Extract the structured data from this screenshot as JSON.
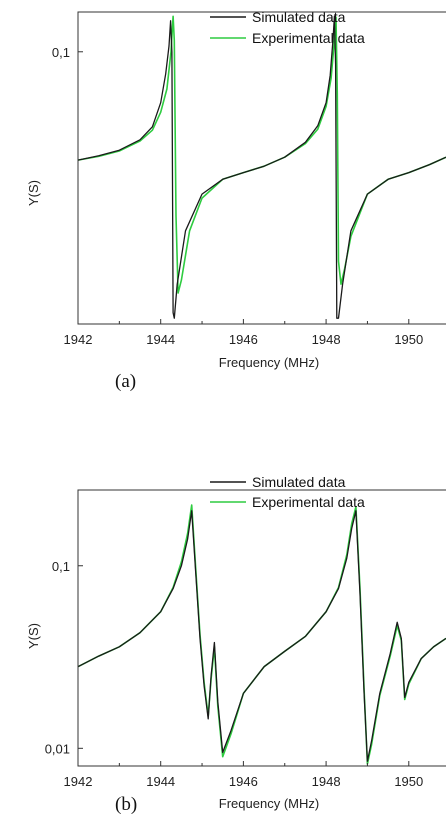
{
  "chart_data": [
    {
      "panel_label": "(a)",
      "type": "line",
      "xlabel": "Frequency (MHz)",
      "ylabel": "Y(S)",
      "xlim": [
        1942,
        1950.9
      ],
      "ylim": [
        0.01,
        0.14
      ],
      "yscale": "log",
      "x_ticks": [
        1942,
        1944,
        1946,
        1948,
        1950
      ],
      "x_tick_labels": [
        "1942",
        "1944",
        "1946",
        "1948",
        "1950"
      ],
      "y_ticks": [
        0.1
      ],
      "y_tick_labels": [
        "0,1"
      ],
      "legend": {
        "placement": "top-center",
        "entries": [
          "Simulated data",
          "Experimental data"
        ]
      },
      "series": [
        {
          "name": "Simulated data",
          "color": "#1a1a1a",
          "x": [
            1942,
            1942.5,
            1943,
            1943.5,
            1943.8,
            1944,
            1944.12,
            1944.2,
            1944.24,
            1944.27,
            1944.3,
            1944.33,
            1944.4,
            1944.6,
            1945,
            1945.5,
            1946,
            1946.5,
            1947,
            1947.5,
            1947.8,
            1948,
            1948.1,
            1948.17,
            1948.2,
            1948.23,
            1948.26,
            1948.3,
            1948.4,
            1948.6,
            1949,
            1949.5,
            1950,
            1950.5,
            1950.9
          ],
          "y": [
            0.04,
            0.0415,
            0.0435,
            0.0475,
            0.053,
            0.065,
            0.083,
            0.105,
            0.13,
            0.1,
            0.011,
            0.0105,
            0.014,
            0.022,
            0.03,
            0.034,
            0.036,
            0.038,
            0.041,
            0.0465,
            0.0535,
            0.065,
            0.082,
            0.112,
            0.135,
            0.09,
            0.0105,
            0.0105,
            0.014,
            0.022,
            0.03,
            0.034,
            0.036,
            0.0385,
            0.041
          ]
        },
        {
          "name": "Experimental data",
          "color": "#2ecc40",
          "x": [
            1942,
            1942.5,
            1943,
            1943.5,
            1943.8,
            1944,
            1944.15,
            1944.25,
            1944.3,
            1944.33,
            1944.37,
            1944.42,
            1944.5,
            1944.7,
            1945,
            1945.5,
            1946,
            1946.5,
            1947,
            1947.5,
            1947.8,
            1948,
            1948.12,
            1948.2,
            1948.24,
            1948.27,
            1948.3,
            1948.36,
            1948.45,
            1948.6,
            1949,
            1949.5,
            1950,
            1950.5,
            1950.9
          ],
          "y": [
            0.04,
            0.0413,
            0.0432,
            0.047,
            0.0515,
            0.06,
            0.073,
            0.1,
            0.135,
            0.11,
            0.025,
            0.013,
            0.0145,
            0.022,
            0.029,
            0.034,
            0.036,
            0.038,
            0.041,
            0.046,
            0.052,
            0.063,
            0.08,
            0.11,
            0.134,
            0.07,
            0.017,
            0.014,
            0.016,
            0.021,
            0.03,
            0.034,
            0.036,
            0.0385,
            0.041
          ]
        }
      ]
    },
    {
      "panel_label": "(b)",
      "type": "line",
      "xlabel": "Frequency (MHz)",
      "ylabel": "Y(S)",
      "xlim": [
        1942,
        1950.9
      ],
      "ylim": [
        0.008,
        0.26
      ],
      "yscale": "log",
      "x_ticks": [
        1942,
        1944,
        1946,
        1948,
        1950
      ],
      "x_tick_labels": [
        "1942",
        "1944",
        "1946",
        "1948",
        "1950"
      ],
      "y_ticks": [
        0.01,
        0.1
      ],
      "y_tick_labels": [
        "0,01",
        "0,1"
      ],
      "legend": {
        "placement": "top-center",
        "entries": [
          "Simulated data",
          "Experimental data"
        ]
      },
      "series": [
        {
          "name": "Simulated data",
          "color": "#1a1a1a",
          "x": [
            1942,
            1942.5,
            1943,
            1943.5,
            1944,
            1944.3,
            1944.5,
            1944.65,
            1944.75,
            1944.85,
            1944.95,
            1945.05,
            1945.15,
            1945.22,
            1945.3,
            1945.38,
            1945.5,
            1945.7,
            1946,
            1946.5,
            1947,
            1947.5,
            1948,
            1948.3,
            1948.5,
            1948.62,
            1948.72,
            1948.82,
            1948.92,
            1949.0,
            1949.1,
            1949.3,
            1949.55,
            1949.72,
            1949.82,
            1949.9,
            1950,
            1950.3,
            1950.6,
            1950.9
          ],
          "y": [
            0.028,
            0.032,
            0.036,
            0.043,
            0.056,
            0.075,
            0.1,
            0.14,
            0.2,
            0.09,
            0.04,
            0.022,
            0.0145,
            0.025,
            0.038,
            0.018,
            0.0095,
            0.0125,
            0.02,
            0.028,
            0.034,
            0.041,
            0.056,
            0.075,
            0.11,
            0.16,
            0.2,
            0.07,
            0.02,
            0.0085,
            0.011,
            0.02,
            0.033,
            0.049,
            0.04,
            0.019,
            0.023,
            0.031,
            0.036,
            0.04
          ]
        },
        {
          "name": "Experimental data",
          "color": "#2ecc40",
          "x": [
            1942,
            1942.5,
            1943,
            1943.5,
            1944,
            1944.3,
            1944.5,
            1944.65,
            1944.75,
            1944.85,
            1944.95,
            1945.05,
            1945.15,
            1945.22,
            1945.3,
            1945.38,
            1945.5,
            1945.7,
            1946,
            1946.5,
            1947,
            1947.5,
            1948,
            1948.3,
            1948.5,
            1948.62,
            1948.72,
            1948.82,
            1948.92,
            1949.0,
            1949.1,
            1949.3,
            1949.55,
            1949.72,
            1949.82,
            1949.9,
            1950,
            1950.3,
            1950.6,
            1950.9
          ],
          "y": [
            0.028,
            0.032,
            0.036,
            0.043,
            0.056,
            0.076,
            0.105,
            0.15,
            0.215,
            0.095,
            0.042,
            0.023,
            0.015,
            0.024,
            0.036,
            0.017,
            0.009,
            0.012,
            0.02,
            0.028,
            0.034,
            0.041,
            0.056,
            0.076,
            0.115,
            0.17,
            0.21,
            0.075,
            0.021,
            0.0082,
            0.0105,
            0.0195,
            0.032,
            0.047,
            0.039,
            0.0185,
            0.0225,
            0.031,
            0.036,
            0.04
          ]
        }
      ]
    }
  ]
}
